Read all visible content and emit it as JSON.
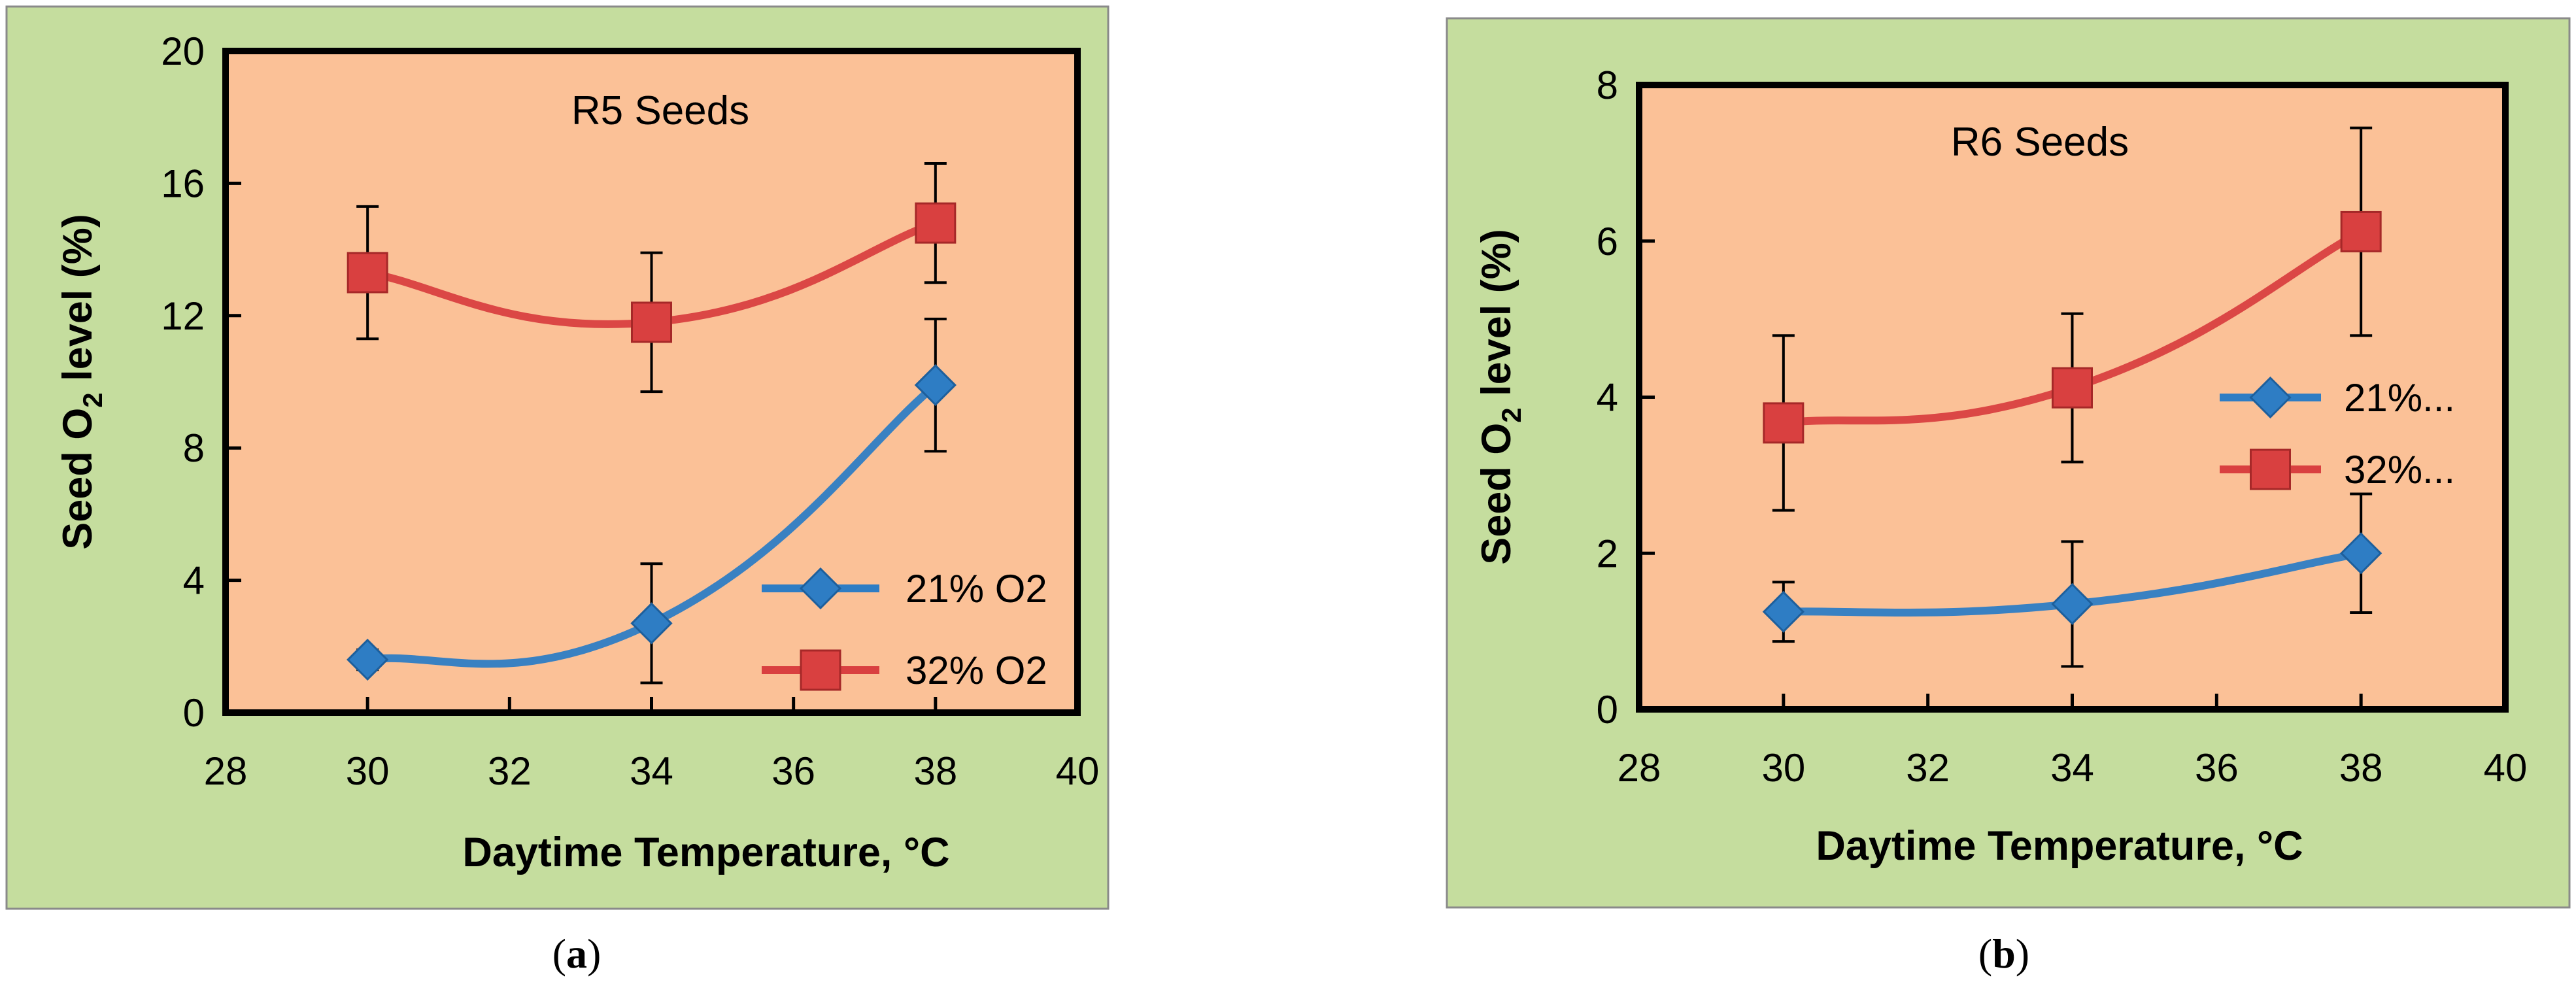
{
  "chart_data": [
    {
      "type": "line",
      "panel_label": "a",
      "title": "R5 Seeds",
      "xlabel": "Daytime Temperature,  °C",
      "ylabel_main": "Seed O",
      "ylabel_sub": "2",
      "ylabel_rest": " level (%)",
      "xlim": [
        28,
        40
      ],
      "ylim": [
        0,
        20
      ],
      "xticks": [
        "28",
        "30",
        "32",
        "34",
        "36",
        "38",
        "40"
      ],
      "yticks": [
        "0",
        "4",
        "8",
        "12",
        "16",
        "20"
      ],
      "grid": false,
      "legend_position": "bottom-right",
      "series": [
        {
          "name": "21% O2",
          "color": "#2e7dc4",
          "marker": "diamond",
          "x": [
            30,
            34,
            38
          ],
          "y": [
            1.6,
            2.7,
            9.9
          ],
          "err": [
            0.3,
            1.8,
            2.0
          ]
        },
        {
          "name": "32% O2",
          "color": "#d94040",
          "marker": "square",
          "x": [
            30,
            34,
            38
          ],
          "y": [
            13.3,
            11.8,
            14.8
          ],
          "err": [
            2.0,
            2.1,
            1.8
          ]
        }
      ]
    },
    {
      "type": "line",
      "panel_label": "b",
      "title": "R6 Seeds",
      "xlabel": "Daytime Temperature, °C",
      "ylabel_main": "Seed O",
      "ylabel_sub": "2",
      "ylabel_rest": " level (%)",
      "xlim": [
        28,
        40
      ],
      "ylim": [
        0,
        8
      ],
      "xticks": [
        "28",
        "30",
        "32",
        "34",
        "36",
        "38",
        "40"
      ],
      "yticks": [
        "0",
        "2",
        "4",
        "6",
        "8"
      ],
      "grid": false,
      "legend_position": "middle-right",
      "series": [
        {
          "name": "21%...",
          "color": "#2e7dc4",
          "marker": "diamond",
          "x": [
            30,
            34,
            38
          ],
          "y": [
            1.25,
            1.35,
            2.0
          ],
          "err": [
            0.38,
            0.8,
            0.76
          ]
        },
        {
          "name": "32%...",
          "color": "#d94040",
          "marker": "square",
          "x": [
            30,
            34,
            38
          ],
          "y": [
            3.67,
            4.12,
            6.12
          ],
          "err": [
            1.12,
            0.95,
            1.33
          ]
        }
      ]
    }
  ],
  "colors": {
    "outer_background": "#c5dd9e",
    "plot_background": "#fbc197",
    "axis": "#000000"
  }
}
